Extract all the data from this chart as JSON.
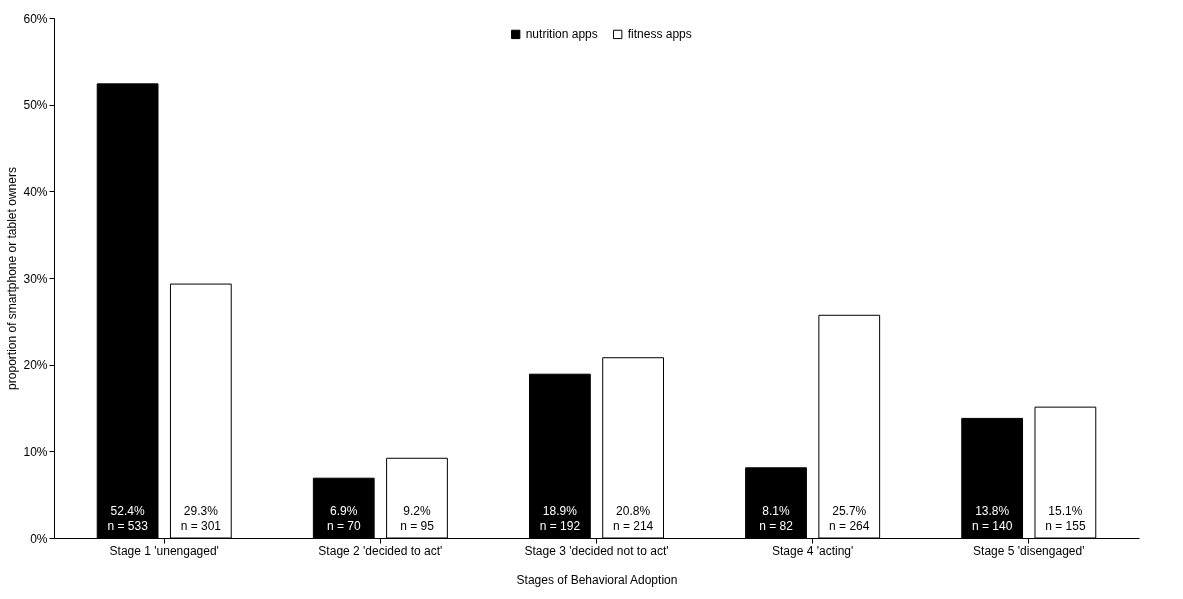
{
  "chart_data": {
    "type": "bar",
    "xlabel": "Stages of Behavioral Adoption",
    "ylabel": "proportion of smartphone or tablet owners",
    "categories": [
      "Stage 1 'unengaged'",
      "Stage 2 'decided to act'",
      "Stage 3 'decided not to act'",
      "Stage 4 'acting'",
      "Stage 5 'disengaged'"
    ],
    "series": [
      {
        "name": "nutrition apps",
        "color": "#000000",
        "values": [
          52.4,
          6.9,
          18.9,
          8.1,
          13.8
        ],
        "value_labels": [
          "52.4%\nn = 533",
          "6.9%\nn = 70",
          "18.9%\nn = 192",
          "8.1%\nn = 82",
          "13.8%\nn = 140"
        ]
      },
      {
        "name": "fitness apps",
        "color": "#ffffff",
        "values": [
          29.3,
          9.2,
          20.8,
          25.7,
          15.1
        ],
        "value_labels": [
          "29.3%\nn = 301",
          "9.2%\nn = 95",
          "20.8%\nn = 214",
          "25.7%\nn = 264",
          "15.1%\nn = 155"
        ]
      }
    ],
    "ylim": [
      0,
      60
    ],
    "yticks": [
      {
        "value": 0,
        "label": "0%"
      },
      {
        "value": 10,
        "label": "10%"
      },
      {
        "value": 20,
        "label": "20%"
      },
      {
        "value": 30,
        "label": "30%"
      },
      {
        "value": 40,
        "label": "40%"
      },
      {
        "value": 50,
        "label": "50%"
      },
      {
        "value": 60,
        "label": "60%"
      }
    ],
    "grid": false,
    "legend": "top"
  }
}
